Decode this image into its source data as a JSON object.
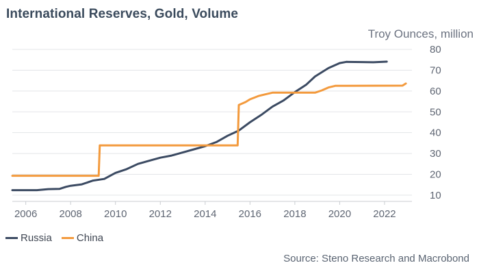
{
  "title": "International Reserves, Gold, Volume",
  "source": "Source: Steno Research and Macrobond",
  "chart_data": {
    "type": "line",
    "ylabel": "Troy Ounces, million",
    "ylim": [
      7,
      82
    ],
    "xlim": [
      2005.4,
      2023.1
    ],
    "y_ticks": [
      10,
      20,
      30,
      40,
      50,
      60,
      70,
      80
    ],
    "x_ticks": [
      2006,
      2008,
      2010,
      2012,
      2014,
      2016,
      2018,
      2020,
      2022
    ],
    "grid": "horizontal",
    "y_axis_position": "right",
    "legend_position": "bottom-left",
    "series": [
      {
        "name": "Russia",
        "color": "#3b4a62",
        "points": [
          [
            2005.4,
            12.4
          ],
          [
            2006.5,
            12.4
          ],
          [
            2007.0,
            12.9
          ],
          [
            2007.5,
            13.0
          ],
          [
            2007.8,
            14.0
          ],
          [
            2008.0,
            14.5
          ],
          [
            2008.5,
            15.2
          ],
          [
            2009.0,
            17.0
          ],
          [
            2009.5,
            17.8
          ],
          [
            2010.0,
            20.7
          ],
          [
            2010.5,
            22.5
          ],
          [
            2011.0,
            25.0
          ],
          [
            2011.5,
            26.5
          ],
          [
            2012.0,
            28.0
          ],
          [
            2012.5,
            29.0
          ],
          [
            2013.0,
            30.5
          ],
          [
            2013.5,
            32.0
          ],
          [
            2014.0,
            33.5
          ],
          [
            2014.5,
            35.5
          ],
          [
            2015.0,
            38.5
          ],
          [
            2015.5,
            41.0
          ],
          [
            2016.0,
            45.0
          ],
          [
            2016.5,
            48.5
          ],
          [
            2017.0,
            52.5
          ],
          [
            2017.5,
            55.5
          ],
          [
            2018.0,
            59.5
          ],
          [
            2018.5,
            63.0
          ],
          [
            2018.9,
            67.0
          ],
          [
            2019.5,
            71.0
          ],
          [
            2020.0,
            73.4
          ],
          [
            2020.3,
            74.0
          ],
          [
            2021.0,
            73.9
          ],
          [
            2021.5,
            73.8
          ],
          [
            2022.1,
            74.1
          ]
        ]
      },
      {
        "name": "China",
        "color": "#f39a3d",
        "points": [
          [
            2005.4,
            19.3
          ],
          [
            2009.25,
            19.3
          ],
          [
            2009.3,
            33.9
          ],
          [
            2015.45,
            33.9
          ],
          [
            2015.5,
            53.3
          ],
          [
            2015.8,
            54.7
          ],
          [
            2016.0,
            56.0
          ],
          [
            2016.4,
            57.7
          ],
          [
            2016.8,
            58.7
          ],
          [
            2017.0,
            59.2
          ],
          [
            2018.9,
            59.2
          ],
          [
            2019.2,
            60.3
          ],
          [
            2019.5,
            61.7
          ],
          [
            2019.8,
            62.5
          ],
          [
            2022.8,
            62.6
          ],
          [
            2022.95,
            63.6
          ]
        ]
      }
    ]
  }
}
